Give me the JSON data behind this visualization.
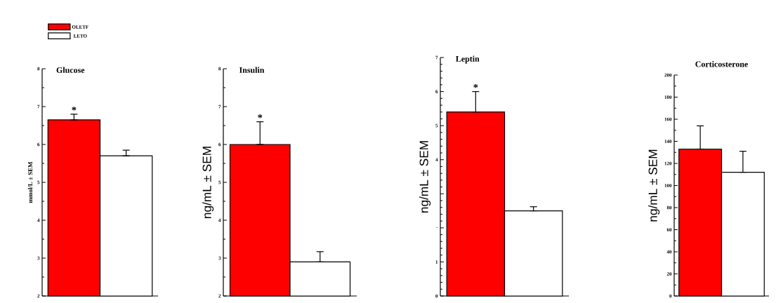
{
  "chart_data": [
    {
      "type": "bar",
      "title": "Glucose",
      "ylabel": "mmol/L ± SEM",
      "categories": [
        null
      ],
      "ylim": [
        2,
        8
      ],
      "yticks": [
        2,
        3,
        4,
        5,
        6,
        7,
        8
      ],
      "legend": "top left",
      "annotations": [
        "*"
      ],
      "series": [
        {
          "name": "OLETF",
          "color": "#ff0000",
          "values": [
            6.65
          ],
          "errors": [
            [
              6.65,
              6.8
            ]
          ]
        },
        {
          "name": "LETO",
          "color": "#ffffff",
          "values": [
            5.7
          ],
          "errors": [
            [
              5.7,
              5.85
            ]
          ]
        }
      ]
    },
    {
      "type": "bar",
      "title": "Insulin",
      "ylabel": "ng/mL ± SEM",
      "categories": [
        null
      ],
      "ylim": [
        2,
        8
      ],
      "yticks": [
        2,
        3,
        4,
        5,
        6,
        7,
        8
      ],
      "annotations": [
        "*"
      ],
      "series": [
        {
          "color": "#ff0000",
          "values": [
            6.0
          ],
          "errors": [
            [
              6.0,
              6.6
            ]
          ]
        },
        {
          "color": "#ffffff",
          "values": [
            2.9
          ],
          "errors": [
            [
              2.9,
              3.17
            ]
          ]
        }
      ]
    },
    {
      "type": "bar",
      "title": "Leptin",
      "ylabel": "ng/mL ± SEM",
      "categories": [
        null
      ],
      "ylim": [
        0,
        7
      ],
      "yticks": [
        0,
        1,
        {
          "value": 2,
          "label": "-"
        },
        {
          "value": 3,
          "label": null
        },
        4,
        5,
        6,
        7
      ],
      "annotations": [
        "*"
      ],
      "series": [
        {
          "color": "#ff0000",
          "values": [
            5.4
          ],
          "errors": [
            [
              5.4,
              6.0
            ]
          ]
        },
        {
          "color": "#ffffff",
          "values": [
            2.5
          ],
          "errors": [
            [
              2.5,
              2.62
            ]
          ]
        }
      ]
    },
    {
      "type": "bar",
      "title": "Corticosterone",
      "ylabel": "ng/mL ± SEM",
      "categories": [
        null
      ],
      "ylim": [
        0,
        200
      ],
      "yticks": [
        0,
        20,
        40,
        60,
        80,
        100,
        120,
        140,
        160,
        180,
        200
      ],
      "series": [
        {
          "color": "#ff0000",
          "values": [
            133
          ],
          "errors": [
            [
              133,
              154
            ]
          ]
        },
        {
          "color": "#ffffff",
          "values": [
            112
          ],
          "errors": [
            [
              112,
              131
            ]
          ]
        }
      ]
    }
  ]
}
